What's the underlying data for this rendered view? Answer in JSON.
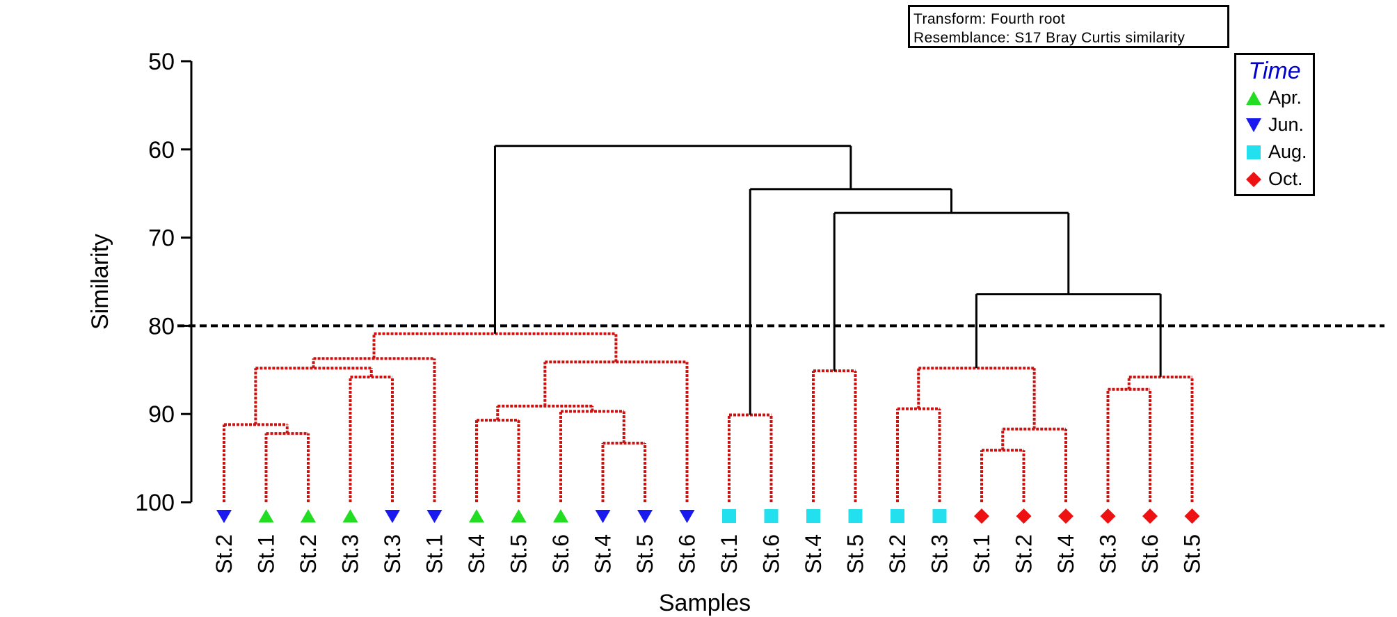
{
  "info": {
    "transform": "Transform: Fourth root",
    "resemblance": "Resemblance: S17 Bray Curtis similarity"
  },
  "legend": {
    "title": "Time",
    "items": [
      {
        "label": "Apr.",
        "marker": "triangle-up",
        "color": "#22dd22"
      },
      {
        "label": "Jun.",
        "marker": "triangle-down",
        "color": "#1a1aee"
      },
      {
        "label": "Aug.",
        "marker": "square",
        "color": "#22e0ee"
      },
      {
        "label": "Oct.",
        "marker": "diamond",
        "color": "#ee1111"
      }
    ]
  },
  "chart_data": {
    "type": "dendrogram",
    "xlabel": "Samples",
    "ylabel": "Similarity",
    "ylim": [
      50,
      100
    ],
    "yticks": [
      50,
      60,
      70,
      80,
      90,
      100
    ],
    "cutoff": 80,
    "colors": {
      "significant": "#000000",
      "nonsignificant": "#cc1111",
      "axis": "#000000"
    },
    "leaves": [
      {
        "label": "St.2",
        "group": "Jun."
      },
      {
        "label": "St.1",
        "group": "Apr."
      },
      {
        "label": "St.2",
        "group": "Apr."
      },
      {
        "label": "St.3",
        "group": "Apr."
      },
      {
        "label": "St.3",
        "group": "Jun."
      },
      {
        "label": "St.1",
        "group": "Jun."
      },
      {
        "label": "St.4",
        "group": "Apr."
      },
      {
        "label": "St.5",
        "group": "Apr."
      },
      {
        "label": "St.6",
        "group": "Apr."
      },
      {
        "label": "St.4",
        "group": "Jun."
      },
      {
        "label": "St.5",
        "group": "Jun."
      },
      {
        "label": "St.6",
        "group": "Jun."
      },
      {
        "label": "St.1",
        "group": "Aug."
      },
      {
        "label": "St.6",
        "group": "Aug."
      },
      {
        "label": "St.4",
        "group": "Aug."
      },
      {
        "label": "St.5",
        "group": "Aug."
      },
      {
        "label": "St.2",
        "group": "Aug."
      },
      {
        "label": "St.3",
        "group": "Aug."
      },
      {
        "label": "St.1",
        "group": "Oct."
      },
      {
        "label": "St.2",
        "group": "Oct."
      },
      {
        "label": "St.4",
        "group": "Oct."
      },
      {
        "label": "St.3",
        "group": "Oct."
      },
      {
        "label": "St.6",
        "group": "Oct."
      },
      {
        "label": "St.5",
        "group": "Oct."
      }
    ],
    "merges": [
      {
        "left": 1,
        "right": 2,
        "height": 92.2
      },
      {
        "left": 0,
        "right": "m0",
        "height": 91.2
      },
      {
        "left": 3,
        "right": 4,
        "height": 85.8
      },
      {
        "left": "m1",
        "right": "m2",
        "height": 84.8
      },
      {
        "left": "m3",
        "right": 5,
        "height": 83.7
      },
      {
        "left": 6,
        "right": 7,
        "height": 90.7
      },
      {
        "left": 9,
        "right": 10,
        "height": 93.3
      },
      {
        "left": 8,
        "right": "m6",
        "height": 89.7
      },
      {
        "left": "m5",
        "right": "m7",
        "height": 89.1
      },
      {
        "left": "m8",
        "right": 11,
        "height": 84.1
      },
      {
        "left": "m4",
        "right": "m9",
        "height": 80.9
      },
      {
        "left": 12,
        "right": 13,
        "height": 90.1
      },
      {
        "left": 14,
        "right": 15,
        "height": 85.1
      },
      {
        "left": 16,
        "right": 17,
        "height": 89.4
      },
      {
        "left": 18,
        "right": 19,
        "height": 94.1
      },
      {
        "left": "m14",
        "right": 20,
        "height": 91.7
      },
      {
        "left": "m13",
        "right": "m15",
        "height": 84.8
      },
      {
        "left": 21,
        "right": 22,
        "height": 87.2
      },
      {
        "left": "m17",
        "right": 23,
        "height": 85.8
      },
      {
        "left": "m16",
        "right": "m18",
        "height": 76.4
      },
      {
        "left": "m12",
        "right": "m19",
        "height": 67.2
      },
      {
        "left": "m11",
        "right": "m20",
        "height": 64.5
      },
      {
        "left": "m10",
        "right": "m21",
        "height": 59.6
      }
    ]
  }
}
